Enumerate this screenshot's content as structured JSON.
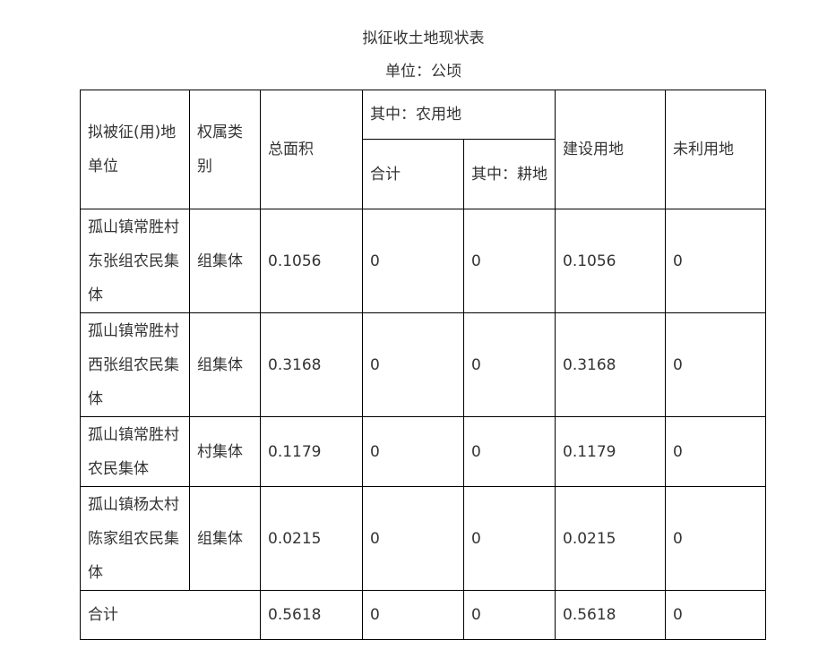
{
  "title": "拟征收土地现状表",
  "unit": "单位：公顷",
  "headers": {
    "unit_name": "拟被征(用)地单位",
    "ownership": "权属类别",
    "total_area": "总面积",
    "agri": "其中：农用地",
    "agri_total": "合计",
    "arable": "其中：耕地",
    "construction": "建设用地",
    "unused": "未利用地"
  },
  "rows": [
    {
      "unit": "孤山镇常胜村东张组农民集体",
      "ownership": "组集体",
      "total": "0.1056",
      "agri": "0",
      "arable": "0",
      "construction": "0.1056",
      "unused": "0"
    },
    {
      "unit": "孤山镇常胜村西张组农民集体",
      "ownership": "组集体",
      "total": "0.3168",
      "agri": "0",
      "arable": "0",
      "construction": "0.3168",
      "unused": "0"
    },
    {
      "unit": "孤山镇常胜村农民集体",
      "ownership": "村集体",
      "total": "0.1179",
      "agri": "0",
      "arable": "0",
      "construction": "0.1179",
      "unused": "0"
    },
    {
      "unit": "孤山镇杨太村陈家组农民集体",
      "ownership": "组集体",
      "total": "0.0215",
      "agri": "0",
      "arable": "0",
      "construction": "0.0215",
      "unused": "0"
    }
  ],
  "total_row": {
    "label": "合计",
    "total": "0.5618",
    "agri": "0",
    "arable": "0",
    "construction": "0.5618",
    "unused": "0"
  }
}
